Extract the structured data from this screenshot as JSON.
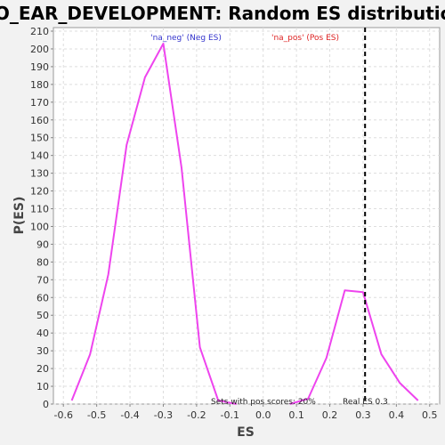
{
  "chart_data": {
    "type": "line",
    "title": "GO_EAR_DEVELOPMENT: Random ES distribution",
    "xlabel": "ES",
    "ylabel": "P(ES)",
    "xlim": [
      -0.63,
      0.53
    ],
    "ylim": [
      0,
      212
    ],
    "x_ticks": [
      -0.6,
      -0.5,
      -0.4,
      -0.3,
      -0.2,
      -0.1,
      0.0,
      0.1,
      0.2,
      0.3,
      0.4,
      0.5
    ],
    "x_tick_labels": [
      "-0.6",
      "-0.5",
      "-0.4",
      "-0.3",
      "-0.2",
      "-0.1",
      "0.0",
      "0.1",
      "0.2",
      "0.3",
      "0.4",
      "0.5"
    ],
    "y_ticks": [
      0,
      10,
      20,
      30,
      40,
      50,
      60,
      70,
      80,
      90,
      100,
      110,
      120,
      130,
      140,
      150,
      160,
      170,
      180,
      190,
      200,
      210
    ],
    "grid": true,
    "series": [
      {
        "name": "'na_neg' (Neg ES)",
        "color": "#ee44ee",
        "legend_color": "#3333cc",
        "x": [
          -0.575,
          -0.52,
          -0.465,
          -0.41,
          -0.355,
          -0.3,
          -0.245,
          -0.19,
          -0.135,
          -0.08
        ],
        "y": [
          2,
          28,
          73,
          146,
          184,
          203,
          133,
          32,
          2,
          0
        ]
      },
      {
        "name": "'na_pos' (Pos ES)",
        "color": "#ee44ee",
        "legend_color": "#dd2222",
        "x": [
          0.08,
          0.135,
          0.19,
          0.245,
          0.3,
          0.355,
          0.41,
          0.465
        ],
        "y": [
          0,
          3,
          26,
          64,
          63,
          28,
          12,
          2
        ]
      }
    ],
    "real_es": {
      "value": 0.306,
      "label": "Real ES 0.3"
    },
    "annotations": {
      "pos_scores": "Sets with pos scores: 20%"
    }
  }
}
